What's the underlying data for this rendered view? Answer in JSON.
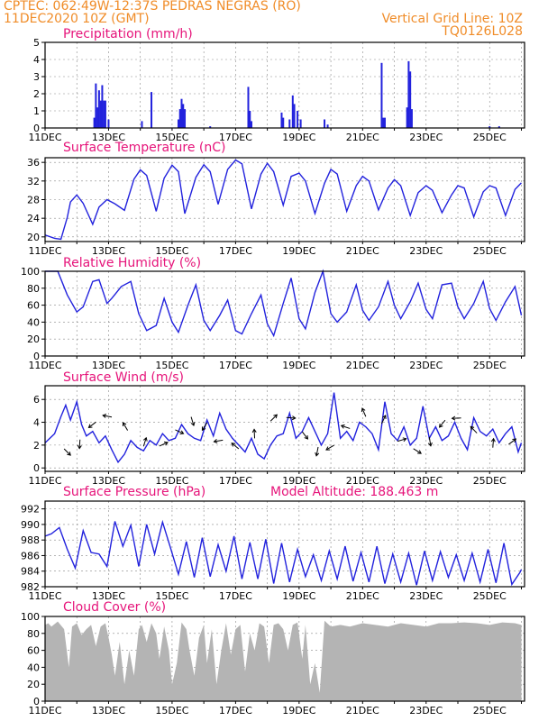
{
  "header": {
    "line1_left": "CPTEC:  062:49W-12:37S  PEDRAS NEGRAS (RO)",
    "line2_left": "11DEC2020 10Z (GMT)",
    "line2_right": "Vertical Grid Line: 10Z",
    "line3_right": "TQ0126L028"
  },
  "colors": {
    "header": "#f08c28",
    "title": "#e6147a",
    "line": "#2222dd",
    "cloud": "#b4b4b4",
    "arrow": "#000000"
  },
  "x_labels": [
    "11DEC",
    "13DEC",
    "15DEC",
    "17DEC",
    "19DEC",
    "21DEC",
    "23DEC",
    "25DEC"
  ],
  "chart_data": [
    {
      "type": "bar",
      "title": "Precipitation (mm/h)",
      "ylim": [
        0,
        5
      ],
      "yticks": [
        0,
        1,
        2,
        3,
        4,
        5
      ],
      "x_range_days": [
        11,
        26.1
      ],
      "x": [
        12.55,
        12.6,
        12.65,
        12.7,
        12.75,
        12.8,
        12.85,
        12.9,
        13.0,
        14.05,
        14.35,
        15.2,
        15.25,
        15.3,
        15.35,
        15.4,
        16.2,
        17.4,
        17.45,
        17.5,
        18.45,
        18.5,
        18.7,
        18.8,
        18.85,
        18.95,
        19.05,
        19.8,
        19.9,
        21.6,
        21.65,
        21.7,
        22.4,
        22.45,
        22.5,
        22.55,
        25.0,
        25.3
      ],
      "values": [
        0.6,
        2.6,
        1.2,
        2.2,
        1.6,
        2.5,
        1.6,
        1.6,
        0.5,
        0.4,
        2.1,
        0.5,
        1.1,
        1.7,
        1.4,
        1.1,
        0.1,
        2.4,
        1.0,
        0.4,
        0.9,
        0.6,
        0.5,
        1.9,
        1.4,
        1.0,
        0.5,
        0.5,
        0.2,
        3.8,
        0.6,
        0.6,
        1.2,
        3.9,
        3.3,
        1.1,
        0.1,
        0.1
      ]
    },
    {
      "type": "line",
      "title": "Surface Temperature (nC)",
      "ylim": [
        19,
        37
      ],
      "yticks": [
        20,
        24,
        28,
        32,
        36
      ],
      "x": [
        11.0,
        11.3,
        11.5,
        11.7,
        11.8,
        12.0,
        12.2,
        12.5,
        12.7,
        12.95,
        13.2,
        13.5,
        13.8,
        14.0,
        14.2,
        14.5,
        14.75,
        15.0,
        15.2,
        15.4,
        15.75,
        16.0,
        16.2,
        16.45,
        16.75,
        17.0,
        17.2,
        17.5,
        17.8,
        18.0,
        18.2,
        18.5,
        18.75,
        19.0,
        19.2,
        19.5,
        19.8,
        20.0,
        20.2,
        20.5,
        20.8,
        21.0,
        21.2,
        21.5,
        21.8,
        22.0,
        22.2,
        22.5,
        22.75,
        23.0,
        23.2,
        23.5,
        23.8,
        24.0,
        24.2,
        24.5,
        24.8,
        25.0,
        25.2,
        25.5,
        25.8,
        26.0
      ],
      "values": [
        20.4,
        19.7,
        19.5,
        24.2,
        27.5,
        29.0,
        27.2,
        22.7,
        26.4,
        28.0,
        27.1,
        25.7,
        32.4,
        34.4,
        33.2,
        25.5,
        32.6,
        35.4,
        34.0,
        25.0,
        32.8,
        35.5,
        34.0,
        27.0,
        34.5,
        36.5,
        35.7,
        26.0,
        33.5,
        35.8,
        34.0,
        26.8,
        33.0,
        33.7,
        32.0,
        25.0,
        31.5,
        34.5,
        33.5,
        25.5,
        31.0,
        33.0,
        32.0,
        25.8,
        30.5,
        32.3,
        31.0,
        24.6,
        29.5,
        31.0,
        30.0,
        25.2,
        29.0,
        31.0,
        30.5,
        24.3,
        29.7,
        31.0,
        30.5,
        24.6,
        30.2,
        31.6
      ]
    },
    {
      "type": "line",
      "title": "Relative Humidity (%)",
      "ylim": [
        0,
        100
      ],
      "yticks": [
        0,
        20,
        40,
        60,
        80,
        100
      ],
      "x": [
        11.0,
        11.4,
        11.7,
        12.0,
        12.2,
        12.5,
        12.7,
        12.95,
        13.1,
        13.4,
        13.7,
        13.95,
        14.2,
        14.5,
        14.75,
        15.0,
        15.2,
        15.5,
        15.75,
        16.0,
        16.2,
        16.5,
        16.75,
        17.0,
        17.2,
        17.5,
        17.8,
        18.0,
        18.2,
        18.5,
        18.75,
        19.0,
        19.2,
        19.5,
        19.75,
        20.0,
        20.2,
        20.5,
        20.8,
        21.0,
        21.2,
        21.5,
        21.8,
        22.0,
        22.2,
        22.5,
        22.75,
        23.0,
        23.2,
        23.5,
        23.8,
        24.0,
        24.2,
        24.5,
        24.8,
        25.0,
        25.2,
        25.5,
        25.8,
        26.0
      ],
      "values": [
        100,
        100,
        72,
        52,
        58,
        88,
        90,
        62,
        68,
        82,
        88,
        50,
        30,
        36,
        68,
        40,
        28,
        60,
        84,
        42,
        30,
        48,
        66,
        30,
        26,
        50,
        72,
        38,
        24,
        62,
        92,
        44,
        32,
        75,
        100,
        50,
        40,
        52,
        84,
        54,
        42,
        58,
        88,
        60,
        44,
        64,
        86,
        55,
        44,
        84,
        86,
        58,
        44,
        62,
        88,
        56,
        42,
        64,
        82,
        48
      ]
    },
    {
      "type": "line",
      "title": "Surface Wind (m/s)",
      "ylim": [
        -0.3,
        7.2
      ],
      "yticks": [
        0,
        2,
        4,
        6
      ],
      "x": [
        11.0,
        11.3,
        11.5,
        11.65,
        11.8,
        12.0,
        12.15,
        12.3,
        12.5,
        12.7,
        12.9,
        13.1,
        13.3,
        13.5,
        13.7,
        13.9,
        14.1,
        14.3,
        14.5,
        14.7,
        14.9,
        15.1,
        15.3,
        15.5,
        15.7,
        15.9,
        16.1,
        16.3,
        16.5,
        16.7,
        16.9,
        17.1,
        17.3,
        17.5,
        17.7,
        17.9,
        18.1,
        18.3,
        18.5,
        18.7,
        18.9,
        19.1,
        19.3,
        19.5,
        19.7,
        19.9,
        20.1,
        20.3,
        20.5,
        20.7,
        20.9,
        21.1,
        21.3,
        21.5,
        21.7,
        21.9,
        22.1,
        22.3,
        22.5,
        22.7,
        22.9,
        23.1,
        23.3,
        23.5,
        23.7,
        23.9,
        24.1,
        24.3,
        24.5,
        24.7,
        24.9,
        25.1,
        25.3,
        25.5,
        25.7,
        25.9,
        26.0
      ],
      "values": [
        2.2,
        3.0,
        4.5,
        5.5,
        4.2,
        5.8,
        3.8,
        2.8,
        3.2,
        2.2,
        2.8,
        1.6,
        0.5,
        1.2,
        2.4,
        1.8,
        1.5,
        2.4,
        2.0,
        3.0,
        2.4,
        2.6,
        3.8,
        3.0,
        2.6,
        2.4,
        4.2,
        2.8,
        4.8,
        3.4,
        2.6,
        2.0,
        1.4,
        2.6,
        1.2,
        0.8,
        2.0,
        2.8,
        3.0,
        4.8,
        2.6,
        3.2,
        4.4,
        3.2,
        2.0,
        3.0,
        6.6,
        2.6,
        3.2,
        2.4,
        4.0,
        3.6,
        3.0,
        1.6,
        5.8,
        3.0,
        2.4,
        3.6,
        2.0,
        2.6,
        5.4,
        2.6,
        3.6,
        2.4,
        2.8,
        4.0,
        2.6,
        1.6,
        4.4,
        3.2,
        2.8,
        3.4,
        2.2,
        3.0,
        3.6,
        1.4,
        2.2
      ]
    },
    {
      "type": "line",
      "title": "Surface Pressure (hPa)",
      "annotation": "Model Altitude: 188.463 m",
      "ylim": [
        982,
        993
      ],
      "yticks": [
        982,
        984,
        986,
        988,
        990,
        992
      ],
      "x": [
        11.0,
        11.2,
        11.45,
        11.7,
        11.95,
        12.2,
        12.45,
        12.7,
        12.95,
        13.2,
        13.45,
        13.7,
        13.95,
        14.2,
        14.45,
        14.7,
        14.95,
        15.2,
        15.45,
        15.7,
        15.95,
        16.2,
        16.45,
        16.7,
        16.95,
        17.2,
        17.45,
        17.7,
        17.95,
        18.2,
        18.45,
        18.7,
        18.95,
        19.2,
        19.45,
        19.7,
        19.95,
        20.2,
        20.45,
        20.7,
        20.95,
        21.2,
        21.45,
        21.7,
        21.95,
        22.2,
        22.45,
        22.7,
        22.95,
        23.2,
        23.45,
        23.7,
        23.95,
        24.2,
        24.45,
        24.7,
        24.95,
        25.2,
        25.45,
        25.7,
        25.95,
        26.0
      ],
      "values": [
        988.5,
        988.8,
        989.6,
        986.8,
        984.4,
        989.2,
        986.4,
        986.2,
        984.6,
        990.4,
        987.2,
        989.9,
        984.6,
        990.0,
        986.2,
        990.3,
        987.0,
        983.6,
        987.8,
        983.2,
        988.3,
        983.3,
        987.4,
        984.0,
        988.5,
        983.0,
        987.7,
        983.0,
        988.1,
        982.4,
        987.6,
        982.6,
        986.8,
        983.3,
        986.1,
        982.8,
        986.6,
        983.0,
        987.2,
        982.7,
        986.4,
        982.6,
        987.2,
        982.4,
        986.2,
        982.6,
        986.3,
        982.2,
        986.6,
        982.8,
        986.5,
        983.2,
        986.1,
        982.8,
        986.3,
        982.6,
        986.8,
        982.5,
        987.6,
        982.3,
        983.8,
        984.2
      ]
    },
    {
      "type": "area",
      "title": "Cloud Cover (%)",
      "ylim": [
        0,
        100
      ],
      "yticks": [
        0,
        20,
        40,
        60,
        80,
        100
      ],
      "x": [
        11.0,
        11.1,
        11.2,
        11.4,
        11.6,
        11.75,
        11.85,
        12.0,
        12.15,
        12.3,
        12.45,
        12.6,
        12.75,
        12.9,
        13.0,
        13.1,
        13.2,
        13.35,
        13.5,
        13.65,
        13.8,
        13.95,
        14.05,
        14.2,
        14.35,
        14.5,
        14.6,
        14.75,
        14.9,
        15.0,
        15.15,
        15.3,
        15.45,
        15.55,
        15.7,
        15.85,
        16.0,
        16.1,
        16.25,
        16.4,
        16.55,
        16.7,
        16.85,
        17.0,
        17.15,
        17.3,
        17.45,
        17.6,
        17.75,
        17.9,
        18.05,
        18.2,
        18.35,
        18.5,
        18.65,
        18.8,
        18.95,
        19.1,
        19.2,
        19.35,
        19.5,
        19.65,
        19.8,
        20.0,
        20.3,
        20.6,
        21.0,
        21.4,
        21.8,
        22.2,
        22.6,
        23.0,
        23.4,
        23.8,
        24.2,
        24.6,
        25.0,
        25.4,
        25.8,
        26.0
      ],
      "values": [
        90,
        92,
        88,
        94,
        85,
        40,
        88,
        92,
        78,
        85,
        90,
        65,
        88,
        92,
        75,
        55,
        30,
        70,
        20,
        60,
        30,
        85,
        90,
        70,
        92,
        80,
        50,
        88,
        60,
        20,
        45,
        93,
        85,
        60,
        30,
        75,
        90,
        45,
        85,
        20,
        60,
        92,
        55,
        85,
        90,
        35,
        80,
        60,
        92,
        88,
        45,
        90,
        92,
        85,
        60,
        90,
        93,
        50,
        90,
        20,
        45,
        10,
        95,
        88,
        90,
        88,
        92,
        90,
        88,
        92,
        90,
        88,
        92,
        92,
        93,
        92,
        90,
        93,
        92,
        90
      ]
    }
  ]
}
